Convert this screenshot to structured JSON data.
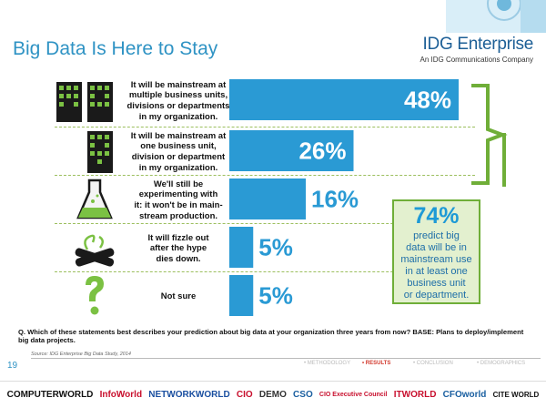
{
  "title": "Big Data Is Here to Stay",
  "brand": {
    "name": "IDG Enterprise",
    "subtitle": "An IDG Communications Company"
  },
  "chart_data": {
    "type": "bar",
    "orientation": "horizontal",
    "categories": [
      "It will be mainstream at multiple business units, divisions or departments in my organization.",
      "It will be mainstream at one business unit, division or department in my organization.",
      "We'll still be experimenting with it: it won't be in mainstream production.",
      "It will fizzle out after the hype dies down.",
      "Not sure"
    ],
    "values": [
      48,
      26,
      16,
      5,
      5
    ],
    "value_labels": [
      "48%",
      "26%",
      "16%",
      "5%",
      "5%"
    ],
    "unit": "%",
    "xlim": [
      0,
      48
    ],
    "grid": false,
    "bar_color": "#2a9ad4",
    "icons": [
      "building-pair-icon",
      "building-icon",
      "flask-icon",
      "fizzle-icon",
      "question-mark-icon"
    ]
  },
  "rows": [
    {
      "label_lines": [
        "It will be mainstream at",
        "multiple business units,",
        "divisions or departments",
        "in my organization."
      ]
    },
    {
      "label_lines": [
        "It will be mainstream at",
        "one business unit,",
        "division or department",
        "in my organization."
      ]
    },
    {
      "label_lines": [
        "We'll still be",
        "experimenting with",
        "it: it won't be in main-",
        "stream production."
      ]
    },
    {
      "label_lines": [
        "It will fizzle out",
        "after the hype",
        "dies down."
      ]
    },
    {
      "label_lines": [
        "Not sure"
      ]
    }
  ],
  "callout": {
    "pct": "74%",
    "lines": [
      "predict big",
      "data will be in",
      "mainstream use",
      "in at least one",
      "business unit",
      "or department."
    ]
  },
  "question": "Q. Which of these statements best describes your prediction about big data at your organization three years from now? BASE: Plans to deploy/implement big data projects.",
  "source": "Source: IDG Enterprise Big Data Study, 2014",
  "page_number": "19",
  "nav": [
    {
      "label": "• METHODOLOGY",
      "active": false
    },
    {
      "label": "• RESULTS",
      "active": true
    },
    {
      "label": "• CONCLUSION",
      "active": false
    },
    {
      "label": "• DEMOGRAPHICS",
      "active": false
    }
  ],
  "logos": [
    {
      "text": "COMPUTERWORLD",
      "color": "#111111"
    },
    {
      "text": "InfoWorld",
      "color": "#c8102e"
    },
    {
      "text": "NETWORKWORLD",
      "color": "#1a4fa0"
    },
    {
      "text": "CIO",
      "color": "#c8102e"
    },
    {
      "text": "DEMO",
      "color": "#333333"
    },
    {
      "text": "CSO",
      "color": "#1a5fa0"
    },
    {
      "text": "CIO Executive Council",
      "color": "#c8102e"
    },
    {
      "text": "ITWORLD",
      "color": "#c8102e"
    },
    {
      "text": "CFOworld",
      "color": "#1a5fa0"
    },
    {
      "text": "CITE WORLD",
      "color": "#111111"
    }
  ],
  "colors": {
    "accent": "#2a9ad4",
    "title": "#2f93c4",
    "callout_border": "#6fae38",
    "callout_bg": "#e3f0cf",
    "active_nav": "#d23a2e"
  }
}
